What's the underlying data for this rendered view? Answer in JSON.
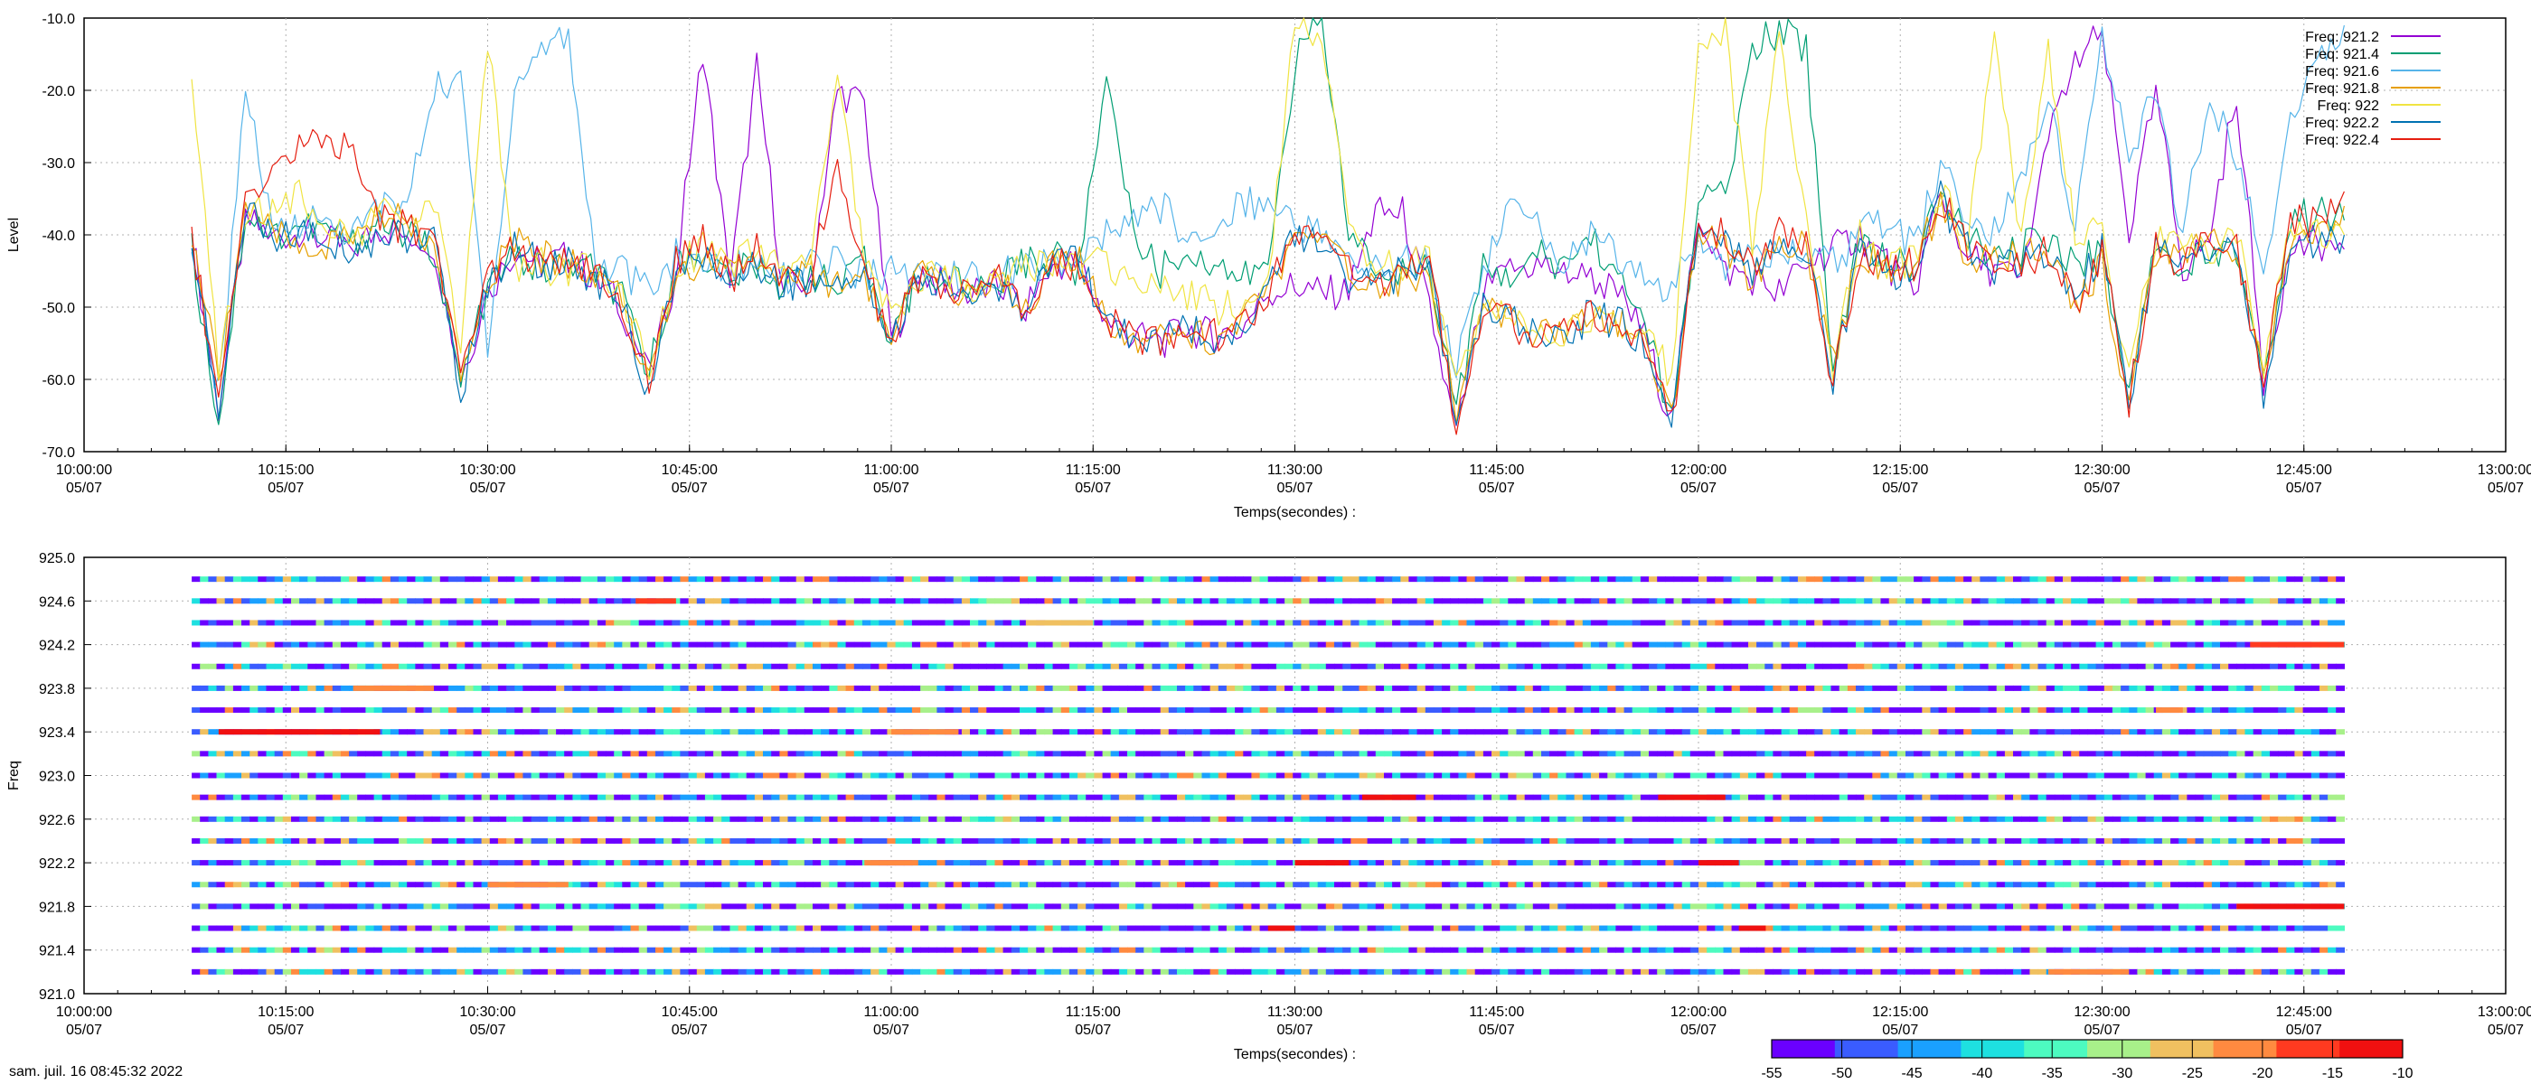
{
  "timestamp": "sam. juil. 16 08:45:32 2022",
  "chart_data": [
    {
      "type": "line",
      "xlabel": "Temps(secondes) :",
      "ylabel": "Level",
      "xlim": [
        "10:00:00",
        "13:00:00"
      ],
      "ylim": [
        -70,
        -10
      ],
      "y_ticks": [
        "-10.0",
        "-20.0",
        "-30.0",
        "-40.0",
        "-50.0",
        "-60.0",
        "-70.0"
      ],
      "x_ticks": [
        {
          "time": "10:00:00",
          "date": "05/07"
        },
        {
          "time": "10:15:00",
          "date": "05/07"
        },
        {
          "time": "10:30:00",
          "date": "05/07"
        },
        {
          "time": "10:45:00",
          "date": "05/07"
        },
        {
          "time": "11:00:00",
          "date": "05/07"
        },
        {
          "time": "11:15:00",
          "date": "05/07"
        },
        {
          "time": "11:30:00",
          "date": "05/07"
        },
        {
          "time": "11:45:00",
          "date": "05/07"
        },
        {
          "time": "12:00:00",
          "date": "05/07"
        },
        {
          "time": "12:15:00",
          "date": "05/07"
        },
        {
          "time": "12:30:00",
          "date": "05/07"
        },
        {
          "time": "12:45:00",
          "date": "05/07"
        },
        {
          "time": "13:00:00",
          "date": "05/07"
        }
      ],
      "grid": true,
      "legend_position": "top-right",
      "x": [
        "10:08",
        "10:10",
        "10:12",
        "10:14",
        "10:16",
        "10:18",
        "10:20",
        "10:22",
        "10:24",
        "10:26",
        "10:28",
        "10:30",
        "10:32",
        "10:34",
        "10:36",
        "10:38",
        "10:40",
        "10:42",
        "10:44",
        "10:46",
        "10:48",
        "10:50",
        "10:52",
        "10:54",
        "10:56",
        "10:58",
        "11:00",
        "11:02",
        "11:04",
        "11:06",
        "11:08",
        "11:10",
        "11:12",
        "11:14",
        "11:16",
        "11:18",
        "11:20",
        "11:22",
        "11:24",
        "11:26",
        "11:28",
        "11:30",
        "11:32",
        "11:34",
        "11:36",
        "11:38",
        "11:40",
        "11:42",
        "11:44",
        "11:46",
        "11:48",
        "11:50",
        "11:52",
        "11:54",
        "11:56",
        "11:58",
        "12:00",
        "12:02",
        "12:04",
        "12:06",
        "12:08",
        "12:10",
        "12:12",
        "12:14",
        "12:16",
        "12:18",
        "12:20",
        "12:22",
        "12:24",
        "12:26",
        "12:28",
        "12:30",
        "12:32",
        "12:34",
        "12:36",
        "12:38",
        "12:40",
        "12:42",
        "12:44",
        "12:46",
        "12:48"
      ],
      "series": [
        {
          "name": "Freq: 921.2",
          "color": "#9400d3",
          "values": [
            -40,
            -64,
            -38,
            -40,
            -40,
            -41,
            -42,
            -39,
            -40,
            -41,
            -60,
            -48,
            -42,
            -44,
            -43,
            -46,
            -50,
            -60,
            -45,
            -14,
            -47,
            -17,
            -48,
            -46,
            -20,
            -22,
            -55,
            -45,
            -47,
            -48,
            -47,
            -50,
            -44,
            -44,
            -52,
            -54,
            -55,
            -53,
            -54,
            -53,
            -48,
            -47,
            -48,
            -48,
            -37,
            -37,
            -50,
            -68,
            -48,
            -45,
            -44,
            -45,
            -46,
            -48,
            -54,
            -66,
            -37,
            -45,
            -46,
            -48,
            -44,
            -42,
            -40,
            -44,
            -48,
            -34,
            -43,
            -45,
            -46,
            -27,
            -16,
            -12,
            -40,
            -20,
            -45,
            -40,
            -20,
            -60,
            -42,
            -41,
            -42
          ]
        },
        {
          "name": "Freq: 921.4",
          "color": "#009e73",
          "values": [
            -42,
            -66,
            -37,
            -40,
            -39,
            -39,
            -41,
            -38,
            -40,
            -42,
            -61,
            -47,
            -43,
            -45,
            -44,
            -45,
            -49,
            -59,
            -44,
            -43,
            -46,
            -44,
            -47,
            -45,
            -48,
            -44,
            -54,
            -46,
            -46,
            -47,
            -46,
            -44,
            -43,
            -45,
            -16,
            -40,
            -45,
            -42,
            -44,
            -46,
            -44,
            -16,
            -10,
            -40,
            -44,
            -45,
            -44,
            -64,
            -45,
            -45,
            -43,
            -44,
            -40,
            -46,
            -52,
            -66,
            -35,
            -35,
            -14,
            -12,
            -14,
            -58,
            -40,
            -44,
            -44,
            -35,
            -40,
            -44,
            -42,
            -40,
            -44,
            -42,
            -62,
            -40,
            -44,
            -42,
            -42,
            -60,
            -38,
            -37,
            -38
          ]
        },
        {
          "name": "Freq: 921.6",
          "color": "#56b4e9",
          "values": [
            -44,
            -62,
            -19,
            -40,
            -38,
            -38,
            -40,
            -36,
            -36,
            -20,
            -18,
            -55,
            -20,
            -14,
            -12,
            -44,
            -45,
            -48,
            -43,
            -44,
            -45,
            -43,
            -46,
            -44,
            -44,
            -46,
            -45,
            -46,
            -45,
            -46,
            -46,
            -44,
            -44,
            -44,
            -40,
            -38,
            -36,
            -40,
            -40,
            -35,
            -36,
            -38,
            -40,
            -44,
            -45,
            -43,
            -44,
            -58,
            -45,
            -36,
            -39,
            -44,
            -40,
            -43,
            -46,
            -48,
            -40,
            -44,
            -40,
            -44,
            -42,
            -44,
            -40,
            -38,
            -42,
            -30,
            -38,
            -40,
            -32,
            -20,
            -40,
            -12,
            -30,
            -20,
            -40,
            -20,
            -30,
            -44,
            -25,
            -15,
            -11
          ]
        },
        {
          "name": "Freq: 921.8",
          "color": "#e69f00",
          "values": [
            -40,
            -60,
            -36,
            -40,
            -41,
            -42,
            -40,
            -38,
            -38,
            -42,
            -60,
            -46,
            -41,
            -43,
            -44,
            -45,
            -48,
            -61,
            -46,
            -43,
            -45,
            -44,
            -46,
            -45,
            -47,
            -45,
            -56,
            -45,
            -47,
            -48,
            -46,
            -50,
            -44,
            -44,
            -52,
            -54,
            -53,
            -53,
            -55,
            -52,
            -48,
            -40,
            -41,
            -45,
            -47,
            -46,
            -45,
            -64,
            -50,
            -52,
            -54,
            -53,
            -50,
            -52,
            -55,
            -64,
            -40,
            -42,
            -46,
            -40,
            -42,
            -58,
            -42,
            -45,
            -44,
            -36,
            -43,
            -44,
            -43,
            -42,
            -50,
            -44,
            -64,
            -42,
            -44,
            -40,
            -42,
            -60,
            -40,
            -40,
            -36
          ]
        },
        {
          "name": "Freq: 922",
          "color": "#f0e442",
          "values": [
            -20,
            -58,
            -38,
            -36,
            -34,
            -38,
            -40,
            -37,
            -38,
            -36,
            -56,
            -14,
            -44,
            -44,
            -46,
            -44,
            -48,
            -58,
            -44,
            -42,
            -45,
            -42,
            -45,
            -44,
            -18,
            -44,
            -52,
            -46,
            -46,
            -47,
            -45,
            -44,
            -44,
            -44,
            -44,
            -46,
            -48,
            -48,
            -50,
            -50,
            -46,
            -10,
            -12,
            -40,
            -45,
            -44,
            -44,
            -60,
            -50,
            -52,
            -52,
            -54,
            -52,
            -52,
            -52,
            -60,
            -14,
            -12,
            -42,
            -12,
            -38,
            -58,
            -40,
            -44,
            -44,
            -34,
            -40,
            -14,
            -40,
            -14,
            -40,
            -40,
            -60,
            -40,
            -40,
            -44,
            -40,
            -58,
            -40,
            -40,
            -40
          ]
        },
        {
          "name": "Freq: 922.2",
          "color": "#0072b2",
          "values": [
            -40,
            -65,
            -36,
            -40,
            -40,
            -41,
            -42,
            -40,
            -40,
            -41,
            -62,
            -47,
            -42,
            -44,
            -44,
            -46,
            -50,
            -62,
            -45,
            -43,
            -46,
            -44,
            -47,
            -46,
            -48,
            -45,
            -55,
            -46,
            -47,
            -48,
            -47,
            -50,
            -44,
            -44,
            -52,
            -54,
            -55,
            -53,
            -54,
            -53,
            -48,
            -40,
            -41,
            -46,
            -47,
            -45,
            -44,
            -66,
            -50,
            -52,
            -54,
            -54,
            -51,
            -52,
            -55,
            -66,
            -38,
            -40,
            -45,
            -40,
            -42,
            -60,
            -42,
            -46,
            -45,
            -35,
            -42,
            -45,
            -44,
            -42,
            -48,
            -42,
            -63,
            -42,
            -44,
            -42,
            -42,
            -62,
            -42,
            -42,
            -40
          ]
        },
        {
          "name": "Freq: 922.4",
          "color": "#e51e10",
          "values": [
            -40,
            -63,
            -36,
            -30,
            -28,
            -27,
            -28,
            -38,
            -39,
            -40,
            -58,
            -46,
            -42,
            -44,
            -44,
            -46,
            -49,
            -61,
            -44,
            -40,
            -46,
            -42,
            -47,
            -46,
            -30,
            -44,
            -55,
            -46,
            -47,
            -48,
            -46,
            -50,
            -44,
            -44,
            -52,
            -54,
            -55,
            -53,
            -54,
            -53,
            -48,
            -40,
            -41,
            -45,
            -47,
            -45,
            -44,
            -66,
            -50,
            -52,
            -54,
            -54,
            -51,
            -52,
            -55,
            -66,
            -38,
            -40,
            -45,
            -40,
            -42,
            -60,
            -42,
            -45,
            -44,
            -35,
            -42,
            -44,
            -44,
            -42,
            -50,
            -42,
            -63,
            -42,
            -44,
            -40,
            -42,
            -60,
            -38,
            -38,
            -34
          ]
        }
      ]
    },
    {
      "type": "heatmap",
      "xlabel": "Temps(secondes) :",
      "ylabel": "Freq",
      "xlim": [
        "10:00:00",
        "13:00:00"
      ],
      "ylim": [
        921.0,
        925.0
      ],
      "y_ticks": [
        "925.0",
        "924.6",
        "924.2",
        "923.8",
        "923.4",
        "923.0",
        "922.6",
        "922.2",
        "921.8",
        "921.4",
        "921.0"
      ],
      "x_ticks": [
        {
          "time": "10:00:00",
          "date": "05/07"
        },
        {
          "time": "10:15:00",
          "date": "05/07"
        },
        {
          "time": "10:30:00",
          "date": "05/07"
        },
        {
          "time": "10:45:00",
          "date": "05/07"
        },
        {
          "time": "11:00:00",
          "date": "05/07"
        },
        {
          "time": "11:15:00",
          "date": "05/07"
        },
        {
          "time": "11:30:00",
          "date": "05/07"
        },
        {
          "time": "11:45:00",
          "date": "05/07"
        },
        {
          "time": "12:00:00",
          "date": "05/07"
        },
        {
          "time": "12:15:00",
          "date": "05/07"
        },
        {
          "time": "12:30:00",
          "date": "05/07"
        },
        {
          "time": "12:45:00",
          "date": "05/07"
        },
        {
          "time": "13:00:00",
          "date": "05/07"
        }
      ],
      "grid": true,
      "time_range": [
        "10:08:00",
        "12:48:00"
      ],
      "frequencies": [
        921.2,
        921.4,
        921.6,
        921.8,
        922.0,
        922.2,
        922.4,
        922.6,
        922.8,
        923.0,
        923.2,
        923.4,
        923.6,
        923.8,
        924.0,
        924.2,
        924.4,
        924.6,
        924.8
      ],
      "colorbar": {
        "range": [
          -55,
          -10
        ],
        "ticks": [
          "-55",
          "-50",
          "-45",
          "-40",
          "-35",
          "-30",
          "-25",
          "-20",
          "-15",
          "-10"
        ],
        "colors": [
          "#6a00ff",
          "#3a5cff",
          "#1aa0ff",
          "#1ee0e0",
          "#4dfbc0",
          "#a8f08a",
          "#f0c060",
          "#ff8a40",
          "#ff3a20",
          "#f01010"
        ]
      },
      "highlights": [
        {
          "freq": 923.4,
          "from": "10:10",
          "to": "10:22",
          "level": -12
        },
        {
          "freq": 922.8,
          "from": "11:35",
          "to": "11:39",
          "level": -12
        },
        {
          "freq": 922.8,
          "from": "11:57",
          "to": "12:02",
          "level": -12
        },
        {
          "freq": 922.2,
          "from": "11:30",
          "to": "11:34",
          "level": -12
        },
        {
          "freq": 922.2,
          "from": "12:00",
          "to": "12:03",
          "level": -14
        },
        {
          "freq": 921.8,
          "from": "12:40",
          "to": "12:48",
          "level": -12
        },
        {
          "freq": 924.2,
          "from": "12:41",
          "to": "12:48",
          "level": -16
        },
        {
          "freq": 923.8,
          "from": "10:20",
          "to": "10:26",
          "level": -20
        },
        {
          "freq": 924.6,
          "from": "10:41",
          "to": "10:44",
          "level": -18
        },
        {
          "freq": 923.4,
          "from": "11:00",
          "to": "11:05",
          "level": -22
        },
        {
          "freq": 922.0,
          "from": "10:30",
          "to": "10:36",
          "level": -22
        },
        {
          "freq": 921.6,
          "from": "11:28",
          "to": "11:30",
          "level": -14
        },
        {
          "freq": 921.6,
          "from": "12:03",
          "to": "12:05",
          "level": -14
        },
        {
          "freq": 921.2,
          "from": "12:26",
          "to": "12:32",
          "level": -22
        },
        {
          "freq": 922.2,
          "from": "10:58",
          "to": "11:02",
          "level": -20
        },
        {
          "freq": 924.4,
          "from": "11:10",
          "to": "11:15",
          "level": -24
        },
        {
          "freq": 923.6,
          "from": "12:34",
          "to": "12:36",
          "level": -20
        }
      ]
    }
  ]
}
